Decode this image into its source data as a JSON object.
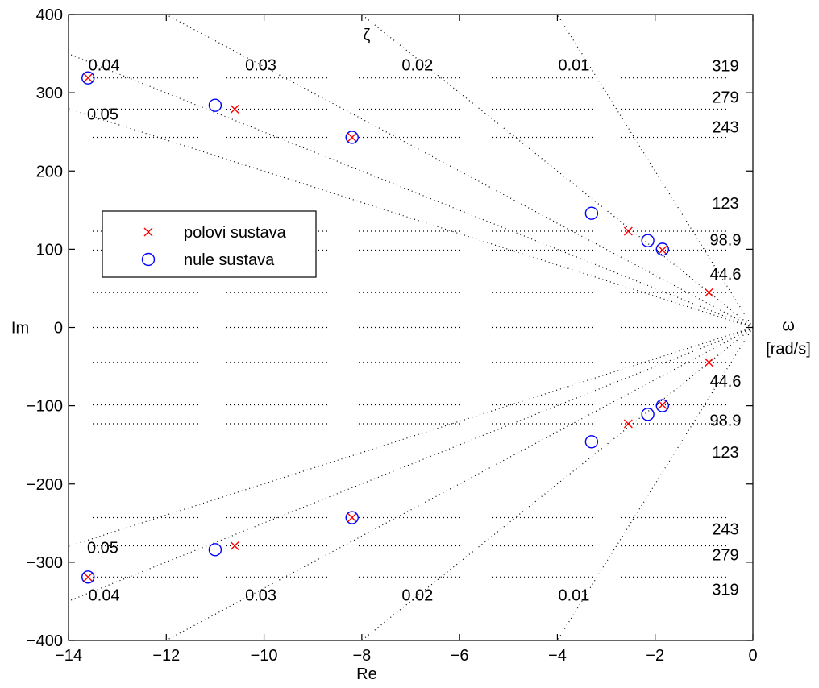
{
  "chart_data": {
    "type": "scatter",
    "title": "",
    "xlabel": "Re",
    "ylabel": "Im",
    "xlim": [
      -14,
      0
    ],
    "ylim": [
      -400,
      400
    ],
    "xticks": [
      -14,
      -12,
      -10,
      -8,
      -6,
      -4,
      -2,
      0
    ],
    "yticks": [
      -400,
      -300,
      -200,
      -100,
      0,
      100,
      200,
      300,
      400
    ],
    "xtick_labels": [
      "−14",
      "−12",
      "−10",
      "−8",
      "−6",
      "−4",
      "−2",
      "0"
    ],
    "ytick_labels": [
      "−400",
      "−300",
      "−200",
      "−100",
      "0",
      "100",
      "200",
      "300",
      "400"
    ],
    "grid": true,
    "zeta_symbol": "ζ",
    "omega_symbol": "ω",
    "omega_unit": "[rad/s]",
    "damping_lines": [
      {
        "zeta": 0.01,
        "label": "0.01"
      },
      {
        "zeta": 0.02,
        "label": "0.02"
      },
      {
        "zeta": 0.03,
        "label": "0.03"
      },
      {
        "zeta": 0.04,
        "label": "0.04"
      },
      {
        "zeta": 0.05,
        "label": "0.05"
      }
    ],
    "frequency_lines": [
      {
        "omega": 44.6,
        "label": "44.6"
      },
      {
        "omega": 98.9,
        "label": "98.9"
      },
      {
        "omega": 123,
        "label": "123"
      },
      {
        "omega": 243,
        "label": "243"
      },
      {
        "omega": 279,
        "label": "279"
      },
      {
        "omega": 319,
        "label": "319"
      }
    ],
    "legend": {
      "placement": "left",
      "entries": [
        "polovi sustava",
        "nule sustava"
      ]
    },
    "series": [
      {
        "name": "polovi sustava",
        "marker": "x",
        "color": "#ff0000",
        "points": [
          {
            "x": -0.9,
            "y": 44.6
          },
          {
            "x": -0.9,
            "y": -44.6
          },
          {
            "x": -1.85,
            "y": 98.9
          },
          {
            "x": -1.85,
            "y": -98.9
          },
          {
            "x": -2.55,
            "y": 123
          },
          {
            "x": -2.55,
            "y": -123
          },
          {
            "x": -8.2,
            "y": 243
          },
          {
            "x": -8.2,
            "y": -243
          },
          {
            "x": -10.6,
            "y": 279
          },
          {
            "x": -10.6,
            "y": -279
          },
          {
            "x": -13.6,
            "y": 319
          },
          {
            "x": -13.6,
            "y": -319
          }
        ]
      },
      {
        "name": "nule sustava",
        "marker": "o",
        "color": "#0000ff",
        "points": [
          {
            "x": -1.85,
            "y": 100
          },
          {
            "x": -1.85,
            "y": -100
          },
          {
            "x": -2.15,
            "y": 111
          },
          {
            "x": -2.15,
            "y": -111
          },
          {
            "x": -3.3,
            "y": 146
          },
          {
            "x": -3.3,
            "y": -146
          },
          {
            "x": -8.2,
            "y": 243
          },
          {
            "x": -8.2,
            "y": -243
          },
          {
            "x": -11,
            "y": 284
          },
          {
            "x": -11,
            "y": -284
          },
          {
            "x": -13.6,
            "y": 319
          },
          {
            "x": -13.6,
            "y": -319
          }
        ]
      }
    ]
  }
}
